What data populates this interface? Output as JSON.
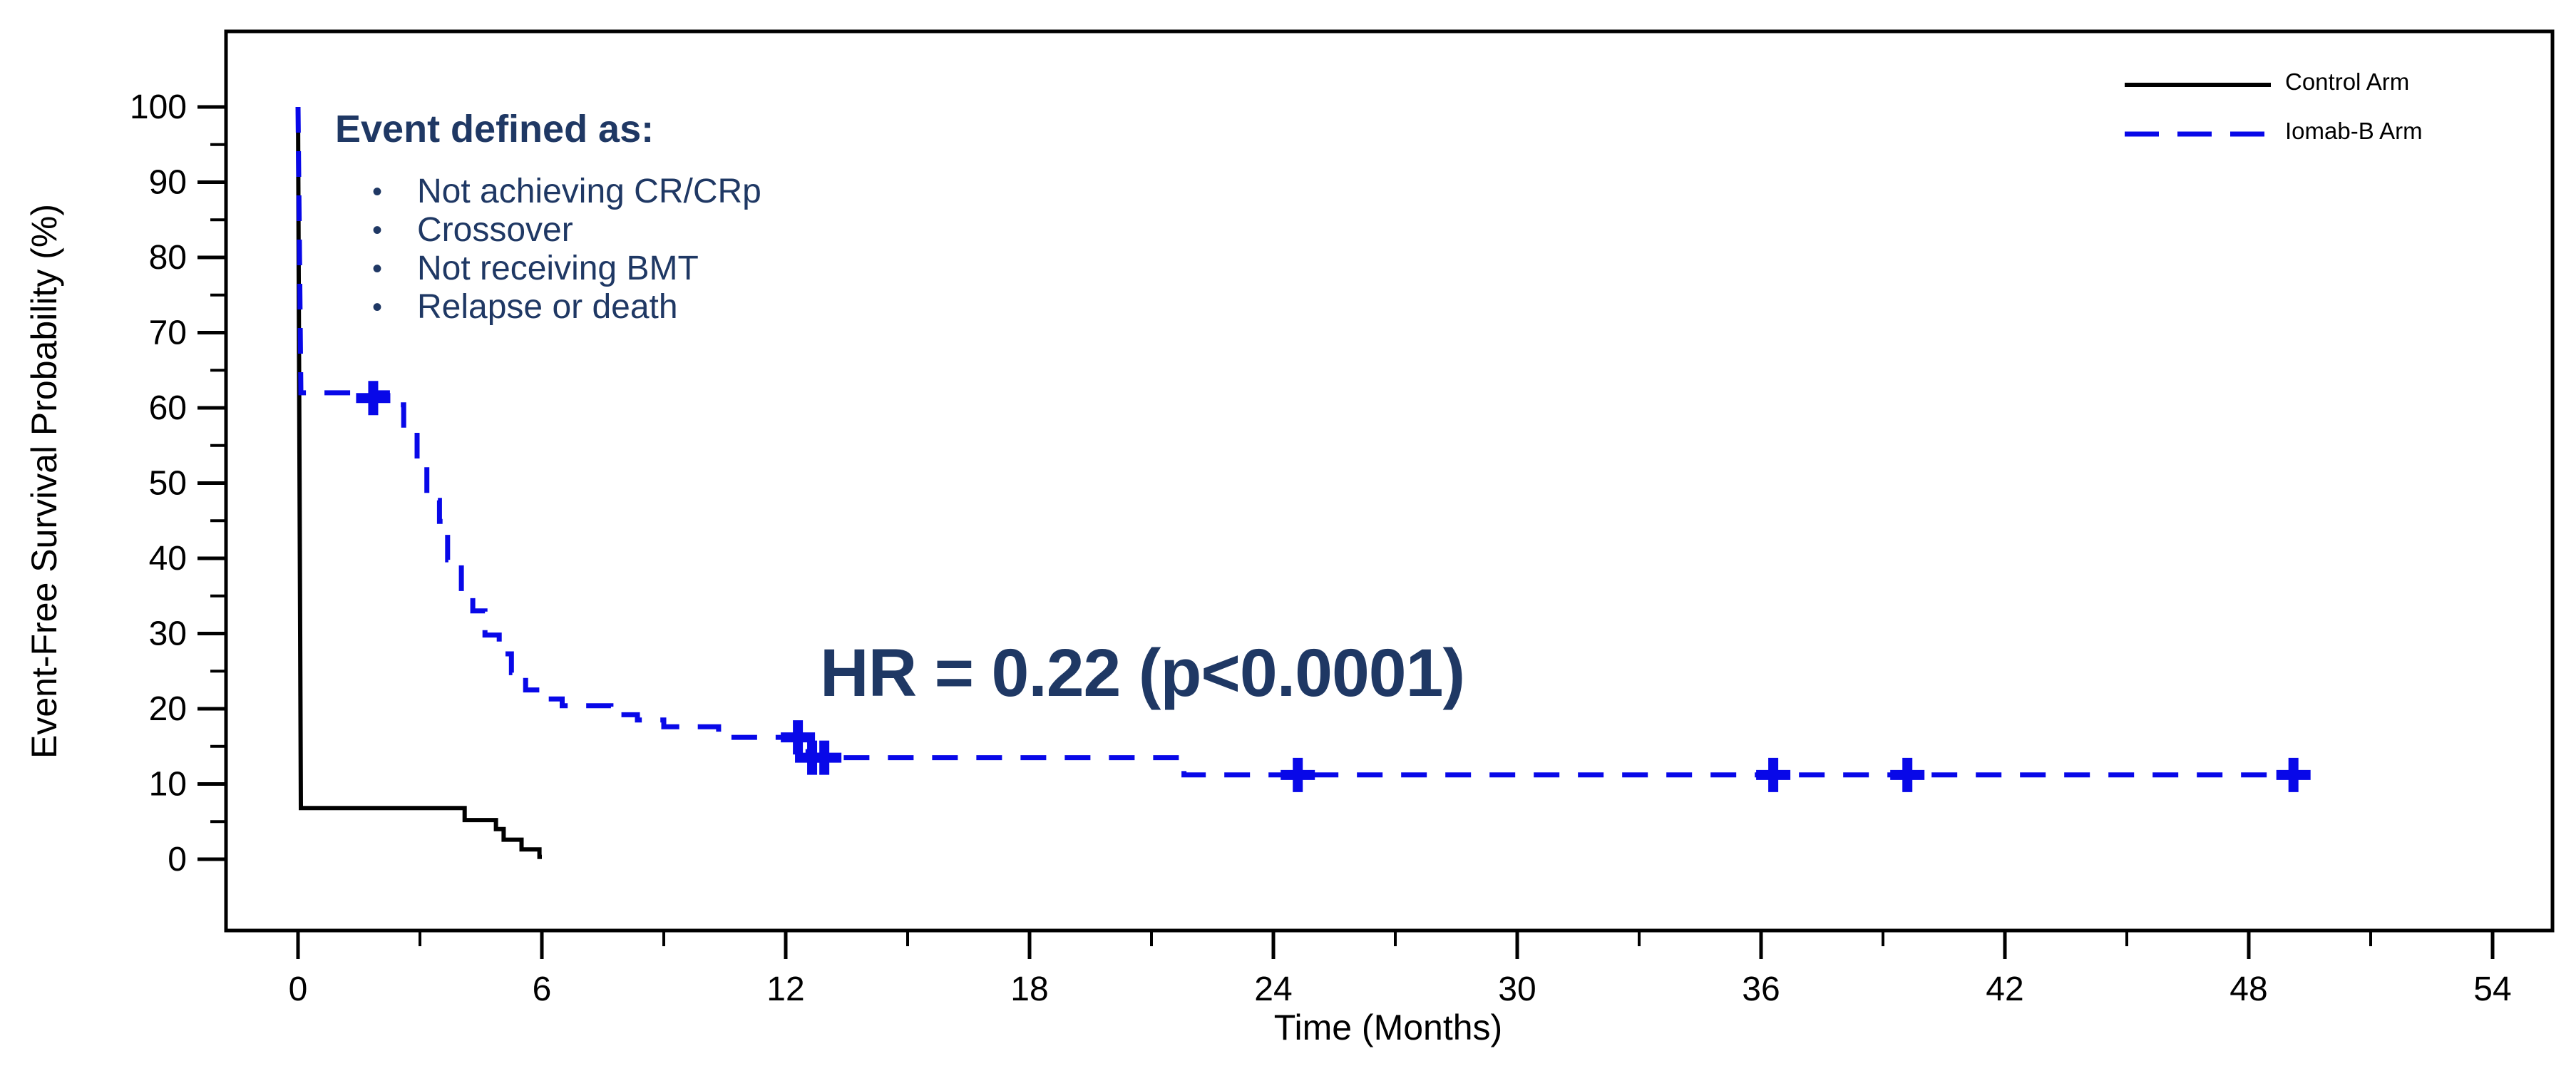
{
  "chart_data": {
    "type": "line",
    "subtype": "kaplan-meier-step-curve",
    "title": "",
    "xlabel": "Time (Months)",
    "ylabel": "Event-Free Survival Probability (%)",
    "xlim": [
      -1.8,
      55.5
    ],
    "ylim": [
      -9.5,
      110
    ],
    "grid": false,
    "legend_position": "top-right-inside",
    "x_ticks_major": [
      0,
      6,
      12,
      18,
      24,
      30,
      36,
      42,
      48,
      54
    ],
    "x_ticks_minor": [
      3,
      9,
      15,
      21,
      27,
      33,
      39,
      45,
      51
    ],
    "y_ticks_major": [
      0,
      10,
      20,
      30,
      40,
      50,
      60,
      70,
      80,
      90,
      100
    ],
    "y_ticks_minor": [
      5,
      15,
      25,
      35,
      45,
      55,
      65,
      75,
      85,
      95
    ],
    "series": [
      {
        "name": "Control Arm",
        "color": "#000000",
        "line_style": "solid",
        "step_points": [
          [
            0,
            100
          ],
          [
            0.07,
            6.8
          ],
          [
            4.1,
            6.8
          ],
          [
            4.1,
            5.2
          ],
          [
            4.87,
            5.2
          ],
          [
            4.87,
            4.0
          ],
          [
            5.06,
            4.0
          ],
          [
            5.06,
            2.6
          ],
          [
            5.5,
            2.6
          ],
          [
            5.5,
            1.3
          ],
          [
            5.94,
            1.3
          ],
          [
            5.94,
            0.3
          ],
          [
            6.0,
            0.3
          ]
        ],
        "censor_marks": []
      },
      {
        "name": "Iomab-B Arm",
        "color": "#0808E8",
        "line_style": "dashed",
        "step_points": [
          [
            0,
            100
          ],
          [
            0.07,
            62
          ],
          [
            2.2,
            62
          ],
          [
            2.2,
            60.4
          ],
          [
            2.6,
            60.4
          ],
          [
            2.6,
            57.3
          ],
          [
            2.93,
            57.3
          ],
          [
            2.93,
            53.1
          ],
          [
            3.17,
            53.1
          ],
          [
            3.17,
            47.7
          ],
          [
            3.48,
            47.7
          ],
          [
            3.48,
            44.9
          ],
          [
            3.68,
            44.9
          ],
          [
            3.68,
            39.8
          ],
          [
            4.02,
            39.8
          ],
          [
            4.02,
            35.6
          ],
          [
            4.3,
            35.6
          ],
          [
            4.3,
            33.0
          ],
          [
            4.6,
            33.0
          ],
          [
            4.6,
            29.8
          ],
          [
            4.95,
            29.8
          ],
          [
            4.95,
            27.3
          ],
          [
            5.25,
            27.3
          ],
          [
            5.25,
            24.8
          ],
          [
            5.6,
            24.8
          ],
          [
            5.6,
            22.5
          ],
          [
            5.95,
            22.5
          ],
          [
            5.95,
            21.3
          ],
          [
            6.5,
            21.3
          ],
          [
            6.5,
            20.4
          ],
          [
            7.7,
            20.4
          ],
          [
            7.7,
            19.2
          ],
          [
            8.35,
            19.2
          ],
          [
            8.35,
            18.5
          ],
          [
            9.0,
            18.5
          ],
          [
            9.0,
            17.6
          ],
          [
            10.35,
            17.6
          ],
          [
            10.35,
            16.2
          ],
          [
            12.55,
            16.2
          ],
          [
            12.55,
            13.5
          ],
          [
            21.8,
            13.5
          ],
          [
            21.8,
            11.2
          ],
          [
            49.1,
            11.2
          ]
        ],
        "censor_marks": [
          [
            1.85,
            61.3
          ],
          [
            12.3,
            16.2
          ],
          [
            12.65,
            13.5
          ],
          [
            12.95,
            13.5
          ],
          [
            24.6,
            11.2
          ],
          [
            36.3,
            11.2
          ],
          [
            39.6,
            11.2
          ],
          [
            49.1,
            11.2
          ]
        ]
      }
    ],
    "annotation": {
      "text": "HR = 0.22 (p<0.0001)",
      "x": 20.2,
      "y": 24.8,
      "color": "#1F3864"
    }
  },
  "event_box": {
    "heading": "Event defined as:",
    "bullets": [
      "Not achieving CR/CRp",
      "Crossover",
      "Not receiving BMT",
      "Relapse or death"
    ],
    "color": "#1F3864"
  },
  "colors": {
    "navy_text": "#1F3864",
    "iomab_blue": "#0808E8",
    "control_black": "#000000",
    "background": "#FFFFFF"
  }
}
